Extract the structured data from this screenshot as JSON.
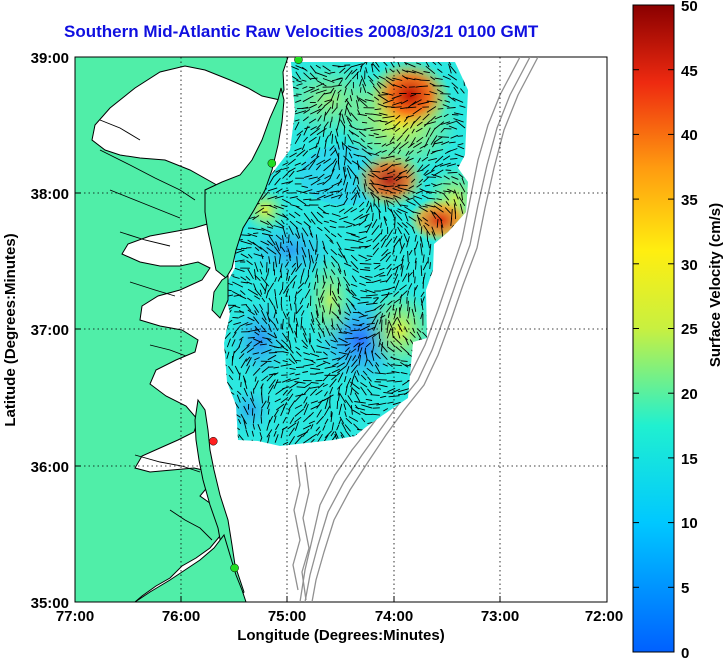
{
  "title": "Southern Mid-Atlantic Raw Velocities 2008/03/21 0100 GMT",
  "x_axis": {
    "label": "Longitude (Degrees:Minutes)",
    "ticks": [
      "77:00",
      "76:00",
      "75:00",
      "74:00",
      "73:00",
      "72:00"
    ]
  },
  "y_axis": {
    "label": "Latitude (Degrees:Minutes)",
    "ticks": [
      "39:00",
      "38:00",
      "37:00",
      "36:00",
      "35:00"
    ]
  },
  "colorbar": {
    "label": "Surface Velocity (cm/s)",
    "ticks": [
      "50",
      "45",
      "40",
      "35",
      "30",
      "25",
      "20",
      "15",
      "10",
      "5",
      "0"
    ],
    "min": 0,
    "max": 50
  },
  "colors": {
    "land": "#50eea8",
    "title": "#1010e0",
    "coast": "#000000",
    "bathymetry": "#909090",
    "station_green": "#22dd22",
    "station_red": "#ff2020"
  },
  "map_extent": {
    "lon_min": -77.0,
    "lon_max": -72.0,
    "lat_min": 35.0,
    "lat_max": 39.0
  },
  "stations": [
    {
      "color": "green",
      "lon": -74.9,
      "lat": 38.98
    },
    {
      "color": "green",
      "lon": -75.15,
      "lat": 38.22
    },
    {
      "color": "red",
      "lon": -75.7,
      "lat": 36.18
    },
    {
      "color": "green",
      "lon": -75.5,
      "lat": 35.25
    }
  ]
}
